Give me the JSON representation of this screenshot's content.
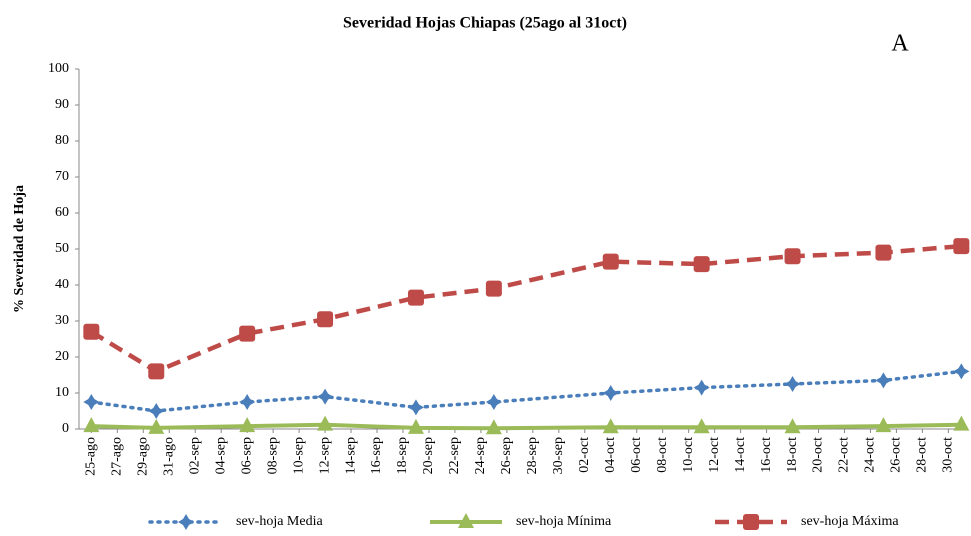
{
  "chart_data": {
    "type": "line",
    "title": "Severidad Hojas Chiapas (25ago al 31oct)",
    "annotation": "A",
    "y_label": "% Severidad de Hoja",
    "xticks": [
      "25-ago",
      "27-ago",
      "29-ago",
      "31-ago",
      "02-sep",
      "04-sep",
      "06-sep",
      "08-sep",
      "10-sep",
      "12-sep",
      "14-sep",
      "16-sep",
      "18-sep",
      "20-sep",
      "22-sep",
      "24-sep",
      "26-sep",
      "28-sep",
      "30-sep",
      "02-oct",
      "04-oct",
      "06-oct",
      "08-oct",
      "10-oct",
      "12-oct",
      "14-oct",
      "16-oct",
      "18-oct",
      "20-oct",
      "22-oct",
      "24-oct",
      "26-oct",
      "28-oct",
      "30-oct"
    ],
    "x": [
      "25-ago",
      "30-ago",
      "06-sep",
      "12-sep",
      "19-sep",
      "25-sep",
      "04-oct",
      "11-oct",
      "18-oct",
      "25-oct",
      "31-oct"
    ],
    "series": [
      {
        "name": "sev-hoja Media",
        "color": "#4a7ebb",
        "style": "dotted",
        "marker": "diamond",
        "values": [
          7.5,
          5,
          7.5,
          9,
          6,
          7.5,
          10,
          11.5,
          12.5,
          13.5,
          16
        ]
      },
      {
        "name": "sev-hoja Mínima",
        "color": "#9bbb59",
        "style": "solid",
        "marker": "triangle",
        "values": [
          0.8,
          0.3,
          0.8,
          1.2,
          0.3,
          0.2,
          0.5,
          0.5,
          0.5,
          0.8,
          1.2
        ]
      },
      {
        "name": "sev-hoja Máxima",
        "color": "#be4b48",
        "style": "dashed",
        "marker": "square",
        "values": [
          27,
          16,
          26.5,
          30.5,
          36.5,
          39,
          46.5,
          45.8,
          48,
          49,
          50.8
        ]
      }
    ],
    "ylim": [
      0,
      100
    ],
    "yticks": [
      0,
      10,
      20,
      30,
      40,
      50,
      60,
      70,
      80,
      90,
      100
    ],
    "grid": false
  }
}
